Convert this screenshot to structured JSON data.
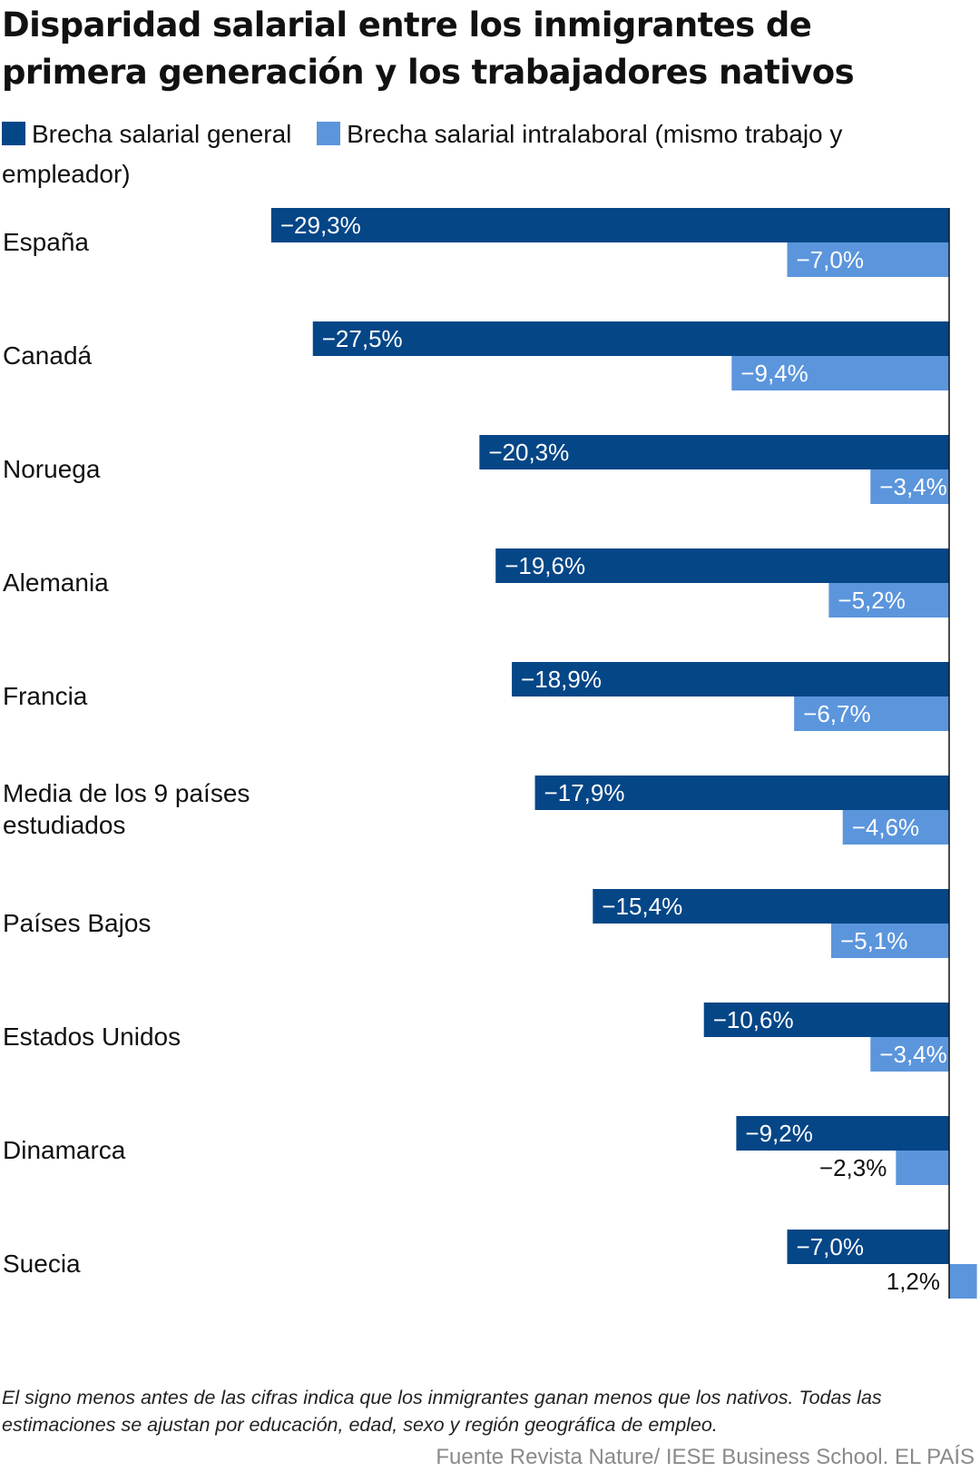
{
  "title": "Disparidad salarial entre los inmigrantes de primera generación y los trabajadores nativos",
  "legend": [
    {
      "label": "Brecha salarial general",
      "color": "#054687"
    },
    {
      "label": "Brecha salarial intralaboral (mismo trabajo y empleador)",
      "color": "#5b95dc"
    }
  ],
  "chart_data": {
    "type": "bar",
    "orientation": "horizontal",
    "title": "Disparidad salarial entre los inmigrantes de primera generación y los trabajadores nativos",
    "categories": [
      "España",
      "Canadá",
      "Noruega",
      "Alemania",
      "Francia",
      "Media de los 9 países estudiados",
      "Países Bajos",
      "Estados Unidos",
      "Dinamarca",
      "Suecia"
    ],
    "series": [
      {
        "name": "Brecha salarial general",
        "color": "#054687",
        "values": [
          -29.3,
          -27.5,
          -20.3,
          -19.6,
          -18.9,
          -17.9,
          -15.4,
          -10.6,
          -9.2,
          -7.0
        ],
        "labels": [
          "−29,3%",
          "−27,5%",
          "−20,3%",
          "−19,6%",
          "−18,9%",
          "−17,9%",
          "−15,4%",
          "−10,6%",
          "−9,2%",
          "−7,0%"
        ]
      },
      {
        "name": "Brecha salarial intralaboral (mismo trabajo y empleador)",
        "color": "#5b95dc",
        "values": [
          -7.0,
          -9.4,
          -3.4,
          -5.2,
          -6.7,
          -4.6,
          -5.1,
          -3.4,
          -2.3,
          1.2
        ],
        "labels": [
          "−7,0%",
          "−9,4%",
          "−3,4%",
          "−5,2%",
          "−6,7%",
          "−4,6%",
          "−5,1%",
          "−3,4%",
          "−2,3%",
          "1,2%"
        ]
      }
    ],
    "axis": {
      "zero_line": true,
      "xlim": [
        -29.3,
        1.2
      ]
    },
    "grid": false,
    "legend_position": "top-left"
  },
  "note": "El signo menos antes de las cifras indica que los inmigrantes ganan menos que los nativos. Todas las estimaciones se ajustan por educación, edad, sexo y región geográfica de empleo.",
  "source": "Fuente Revista Nature/ IESE Business School. EL PAÍS"
}
